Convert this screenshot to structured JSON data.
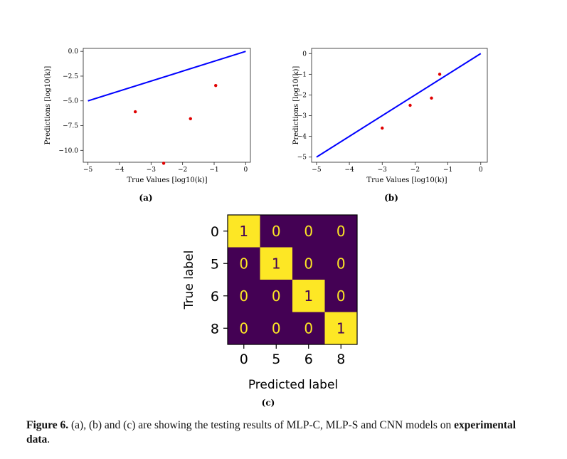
{
  "figure": {
    "caption_label": "Figure 6.",
    "caption_text": " (a), (b) and (c) are showing the testing results of MLP-C, MLP-S and CNN models on ",
    "caption_bold_tail": "experimental data",
    "caption_end": "."
  },
  "chart_data": [
    {
      "type": "scatter",
      "panel_label": "(a)",
      "xlabel": "True Values [log10(k)]",
      "ylabel": "Predictions [log10(k)]",
      "xlim": [
        -5,
        0
      ],
      "ylim": [
        -11.2,
        0.3
      ],
      "xticks": [
        -5,
        -4,
        -3,
        -2,
        -1,
        0
      ],
      "yticks": [
        0.0,
        -2.5,
        -5.0,
        -7.5,
        -10.0
      ],
      "xtick_labels": [
        "−5",
        "−4",
        "−3",
        "−2",
        "−1",
        "0"
      ],
      "ytick_labels": [
        "0.0",
        "−2.5",
        "−5.0",
        "−7.5",
        "−10.0"
      ],
      "line": {
        "x": [
          -5,
          0
        ],
        "y": [
          -5.0,
          0.0
        ],
        "color": "#0000ff"
      },
      "points": {
        "x": [
          -3.5,
          -2.6,
          -1.75,
          -0.95
        ],
        "y": [
          -6.1,
          -11.3,
          -6.8,
          -3.45
        ],
        "color": "#e00000"
      }
    },
    {
      "type": "scatter",
      "panel_label": "(b)",
      "xlabel": "True Values [log10(k)]",
      "ylabel": "Predictions [log10(k)]",
      "xlim": [
        -5.2,
        0.2
      ],
      "ylim": [
        -5.2,
        0.2
      ],
      "xticks": [
        -5,
        -4,
        -3,
        -2,
        -1,
        0
      ],
      "yticks": [
        0,
        -1,
        -2,
        -3,
        -4,
        -5
      ],
      "xtick_labels": [
        "−5",
        "−4",
        "−3",
        "−2",
        "−1",
        "0"
      ],
      "ytick_labels": [
        "0",
        "−1",
        "−2",
        "−3",
        "−4",
        "−5"
      ],
      "line": {
        "x": [
          -5,
          0
        ],
        "y": [
          -5,
          0
        ],
        "color": "#0000ff"
      },
      "points": {
        "x": [
          -3.0,
          -2.15,
          -1.5,
          -1.25
        ],
        "y": [
          -3.6,
          -2.5,
          -2.15,
          -1.0
        ],
        "color": "#e00000"
      }
    },
    {
      "type": "heatmap",
      "panel_label": "(c)",
      "xlabel": "Predicted label",
      "ylabel": "True label",
      "x_categories": [
        "0",
        "5",
        "6",
        "8"
      ],
      "y_categories": [
        "0",
        "5",
        "6",
        "8"
      ],
      "values": [
        [
          1,
          0,
          0,
          0
        ],
        [
          0,
          1,
          0,
          0
        ],
        [
          0,
          0,
          1,
          0
        ],
        [
          0,
          0,
          0,
          1
        ]
      ],
      "colors": {
        "low": "#440154",
        "high": "#fde725",
        "text_on_low": "#fde725",
        "text_on_high": "#440154"
      }
    }
  ]
}
